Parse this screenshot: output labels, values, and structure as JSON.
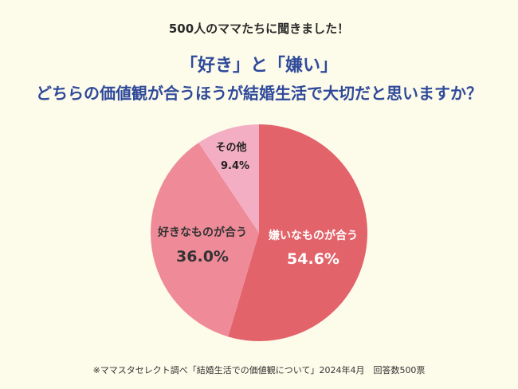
{
  "header": {
    "surtitle": "500人のママたちに聞きました！",
    "title_line1": "「好き」と「嫌い」",
    "title_line2": "どちらの価値観が合うほうが結婚生活で大切だと思いますか？"
  },
  "chart_data": {
    "type": "pie",
    "slices": [
      {
        "label": "嫌いなものが合う",
        "value": 54.6,
        "display": "54.6%",
        "color": "#e2636a",
        "text_color": "#ffffff"
      },
      {
        "label": "好きなものが合う",
        "value": 36.0,
        "display": "36.0%",
        "color": "#ef8a98",
        "text_color": "#333333"
      },
      {
        "label": "その他",
        "value": 9.4,
        "display": "9.4%",
        "color": "#f4aec4",
        "text_color": "#222222"
      }
    ],
    "start": "top",
    "direction": "clockwise"
  },
  "footnote": "※ママスタセレクト調べ「結婚生活での価値観について」2024年4月　回答数500票"
}
